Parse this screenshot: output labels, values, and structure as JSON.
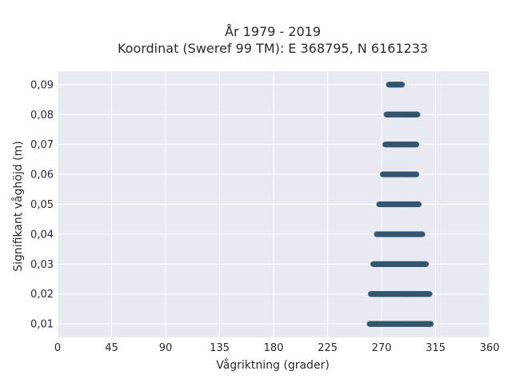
{
  "chart_data": {
    "type": "scatter",
    "title_line1": "År 1979 - 2019",
    "title_line2": "Koordinat (Sweref 99 TM): E 368795, N 6161233",
    "xlabel": "Vågriktning (grader)",
    "ylabel": "Signifikant våghöjd (m)",
    "xlim": [
      0,
      360
    ],
    "ylim": [
      0.0055,
      0.0945
    ],
    "x_ticks": [
      0,
      45,
      90,
      135,
      180,
      225,
      270,
      315,
      360
    ],
    "x_tick_labels": [
      "0",
      "45",
      "90",
      "135",
      "180",
      "225",
      "270",
      "315",
      "360"
    ],
    "y_ticks": [
      0.01,
      0.02,
      0.03,
      0.04,
      0.05,
      0.06,
      0.07,
      0.08,
      0.09
    ],
    "y_tick_labels": [
      "0,01",
      "0,02",
      "0,03",
      "0,04",
      "0,05",
      "0,06",
      "0,07",
      "0,08",
      "0,09"
    ],
    "grid": true,
    "point_color": "#34566e",
    "background_color": "#e9e9f2",
    "bands": [
      {
        "y": 0.01,
        "x_min": 260,
        "x_max": 311
      },
      {
        "y": 0.02,
        "x_min": 261,
        "x_max": 310
      },
      {
        "y": 0.03,
        "x_min": 263,
        "x_max": 307
      },
      {
        "y": 0.04,
        "x_min": 266,
        "x_max": 304
      },
      {
        "y": 0.05,
        "x_min": 268,
        "x_max": 301
      },
      {
        "y": 0.06,
        "x_min": 271,
        "x_max": 299
      },
      {
        "y": 0.07,
        "x_min": 273,
        "x_max": 299
      },
      {
        "y": 0.08,
        "x_min": 274,
        "x_max": 300
      },
      {
        "y": 0.09,
        "x_min": 276,
        "x_max": 287
      }
    ]
  }
}
